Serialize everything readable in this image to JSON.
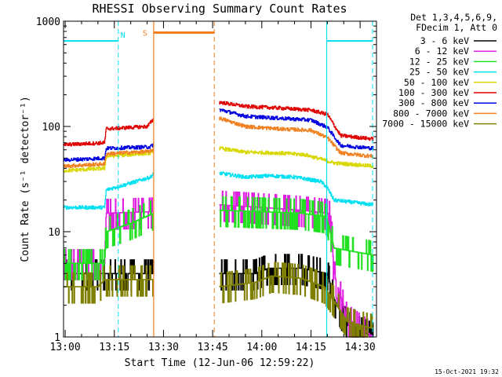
{
  "chart_data": {
    "type": "line",
    "title": "RHESSI Observing Summary Count Rates",
    "xlabel": "Start Time (12-Jun-06 12:59:22)",
    "ylabel": "Count Rate (s⁻¹ detector⁻¹)",
    "yscale": "log",
    "ylim": [
      1,
      1000
    ],
    "xlim_minutes_after_1300": [
      -0.5,
      95
    ],
    "x_tick_labels": [
      "13:00",
      "13:15",
      "13:30",
      "13:45",
      "14:00",
      "14:15",
      "14:30"
    ],
    "x_tick_minutes": [
      0,
      15,
      30,
      45,
      60,
      75,
      90
    ],
    "y_tick_labels": [
      "1",
      "10",
      "100",
      "1000"
    ],
    "y_tick_values": [
      1,
      10,
      100,
      1000
    ],
    "legend_header": [
      "Det 1,3,4,5,6,9,",
      "FDecim 1, Att 0"
    ],
    "legend_position": "top-right outside plot",
    "footer_date": "15-Oct-2021 19:32",
    "flags": {
      "night_label": "N",
      "saa_label": "S",
      "night_level": 650,
      "saa_level": 780,
      "night_color": "#00e0f0",
      "saa_color": "#f08020",
      "night_intervals": [
        [
          -0.5,
          16.2
        ],
        [
          79.8,
          93.8
        ]
      ],
      "saa_interval": [
        27,
        45.5
      ],
      "solid_markers": [
        27,
        79.8
      ],
      "dashed_markers": [
        16.2,
        45.5,
        93.8
      ]
    },
    "data_gap": [
      27,
      47
    ],
    "series": [
      {
        "name": "3 - 6 keV",
        "color": "#000000",
        "values": [
          [
            -0.5,
            4
          ],
          [
            27,
            4
          ],
          [
            47,
            4
          ],
          [
            58,
            4
          ],
          [
            62,
            4.5
          ],
          [
            72,
            4.5
          ],
          [
            80,
            4
          ],
          [
            82,
            2.3
          ],
          [
            86,
            1.3
          ],
          [
            94,
            1
          ]
        ]
      },
      {
        "name": "6 - 12 keV",
        "color": "#e020e0",
        "values": [
          [
            -0.5,
            5
          ],
          [
            12,
            5
          ],
          [
            12.5,
            15
          ],
          [
            27,
            15.5
          ],
          [
            47,
            18
          ],
          [
            60,
            17
          ],
          [
            72,
            16
          ],
          [
            80,
            15
          ],
          [
            81,
            14
          ],
          [
            82,
            4
          ],
          [
            86,
            1.5
          ],
          [
            94,
            1
          ]
        ]
      },
      {
        "name": "12 - 25 keV",
        "color": "#20e020",
        "values": [
          [
            -0.5,
            5
          ],
          [
            12,
            5
          ],
          [
            12.5,
            10
          ],
          [
            20,
            12
          ],
          [
            27,
            15
          ],
          [
            47,
            16
          ],
          [
            60,
            15.5
          ],
          [
            72,
            15
          ],
          [
            79,
            14
          ],
          [
            80,
            13
          ],
          [
            82,
            7
          ],
          [
            94,
            6
          ]
        ]
      },
      {
        "name": "25 - 50 keV",
        "color": "#00e0f0",
        "values": [
          [
            -0.5,
            17
          ],
          [
            12,
            17
          ],
          [
            12.5,
            25
          ],
          [
            20,
            29
          ],
          [
            26,
            33
          ],
          [
            27,
            36
          ],
          [
            47,
            36
          ],
          [
            55,
            33
          ],
          [
            62,
            34
          ],
          [
            70,
            33
          ],
          [
            78,
            30
          ],
          [
            80,
            26
          ],
          [
            82,
            20
          ],
          [
            94,
            18
          ]
        ]
      },
      {
        "name": "50 - 100 keV",
        "color": "#d8d800",
        "values": [
          [
            -0.5,
            38
          ],
          [
            12,
            40
          ],
          [
            12.5,
            52
          ],
          [
            26,
            56
          ],
          [
            27,
            60
          ],
          [
            47,
            62
          ],
          [
            55,
            57
          ],
          [
            65,
            56
          ],
          [
            73,
            54
          ],
          [
            79,
            48
          ],
          [
            82,
            45
          ],
          [
            94,
            42
          ]
        ]
      },
      {
        "name": "100 - 300 keV",
        "color": "#e00000",
        "values": [
          [
            -0.5,
            67
          ],
          [
            12,
            70
          ],
          [
            12.5,
            95
          ],
          [
            25,
            100
          ],
          [
            27,
            118
          ],
          [
            47,
            170
          ],
          [
            55,
            155
          ],
          [
            65,
            150
          ],
          [
            75,
            143
          ],
          [
            80,
            130
          ],
          [
            84,
            82
          ],
          [
            94,
            76
          ]
        ]
      },
      {
        "name": "300 - 800 keV",
        "color": "#0000e0",
        "values": [
          [
            -0.5,
            48
          ],
          [
            12,
            50
          ],
          [
            12.5,
            62
          ],
          [
            26,
            64
          ],
          [
            27,
            68
          ],
          [
            47,
            145
          ],
          [
            55,
            125
          ],
          [
            65,
            120
          ],
          [
            75,
            115
          ],
          [
            80,
            98
          ],
          [
            84,
            66
          ],
          [
            94,
            62
          ]
        ]
      },
      {
        "name": "800 - 7000 keV",
        "color": "#f08020",
        "values": [
          [
            -0.5,
            42
          ],
          [
            12,
            44
          ],
          [
            12.5,
            55
          ],
          [
            26,
            58
          ],
          [
            27,
            62
          ],
          [
            47,
            120
          ],
          [
            55,
            100
          ],
          [
            65,
            95
          ],
          [
            75,
            92
          ],
          [
            80,
            78
          ],
          [
            84,
            56
          ],
          [
            94,
            52
          ]
        ]
      },
      {
        "name": "7000 - 15000 keV",
        "color": "#808000",
        "values": [
          [
            -0.5,
            3
          ],
          [
            10,
            3
          ],
          [
            12,
            3.5
          ],
          [
            27,
            3.5
          ],
          [
            47,
            3
          ],
          [
            58,
            3.3
          ],
          [
            63,
            3.8
          ],
          [
            72,
            3.6
          ],
          [
            79,
            3
          ],
          [
            82,
            2.2
          ],
          [
            86,
            1.4
          ],
          [
            94,
            1.2
          ]
        ]
      }
    ]
  }
}
